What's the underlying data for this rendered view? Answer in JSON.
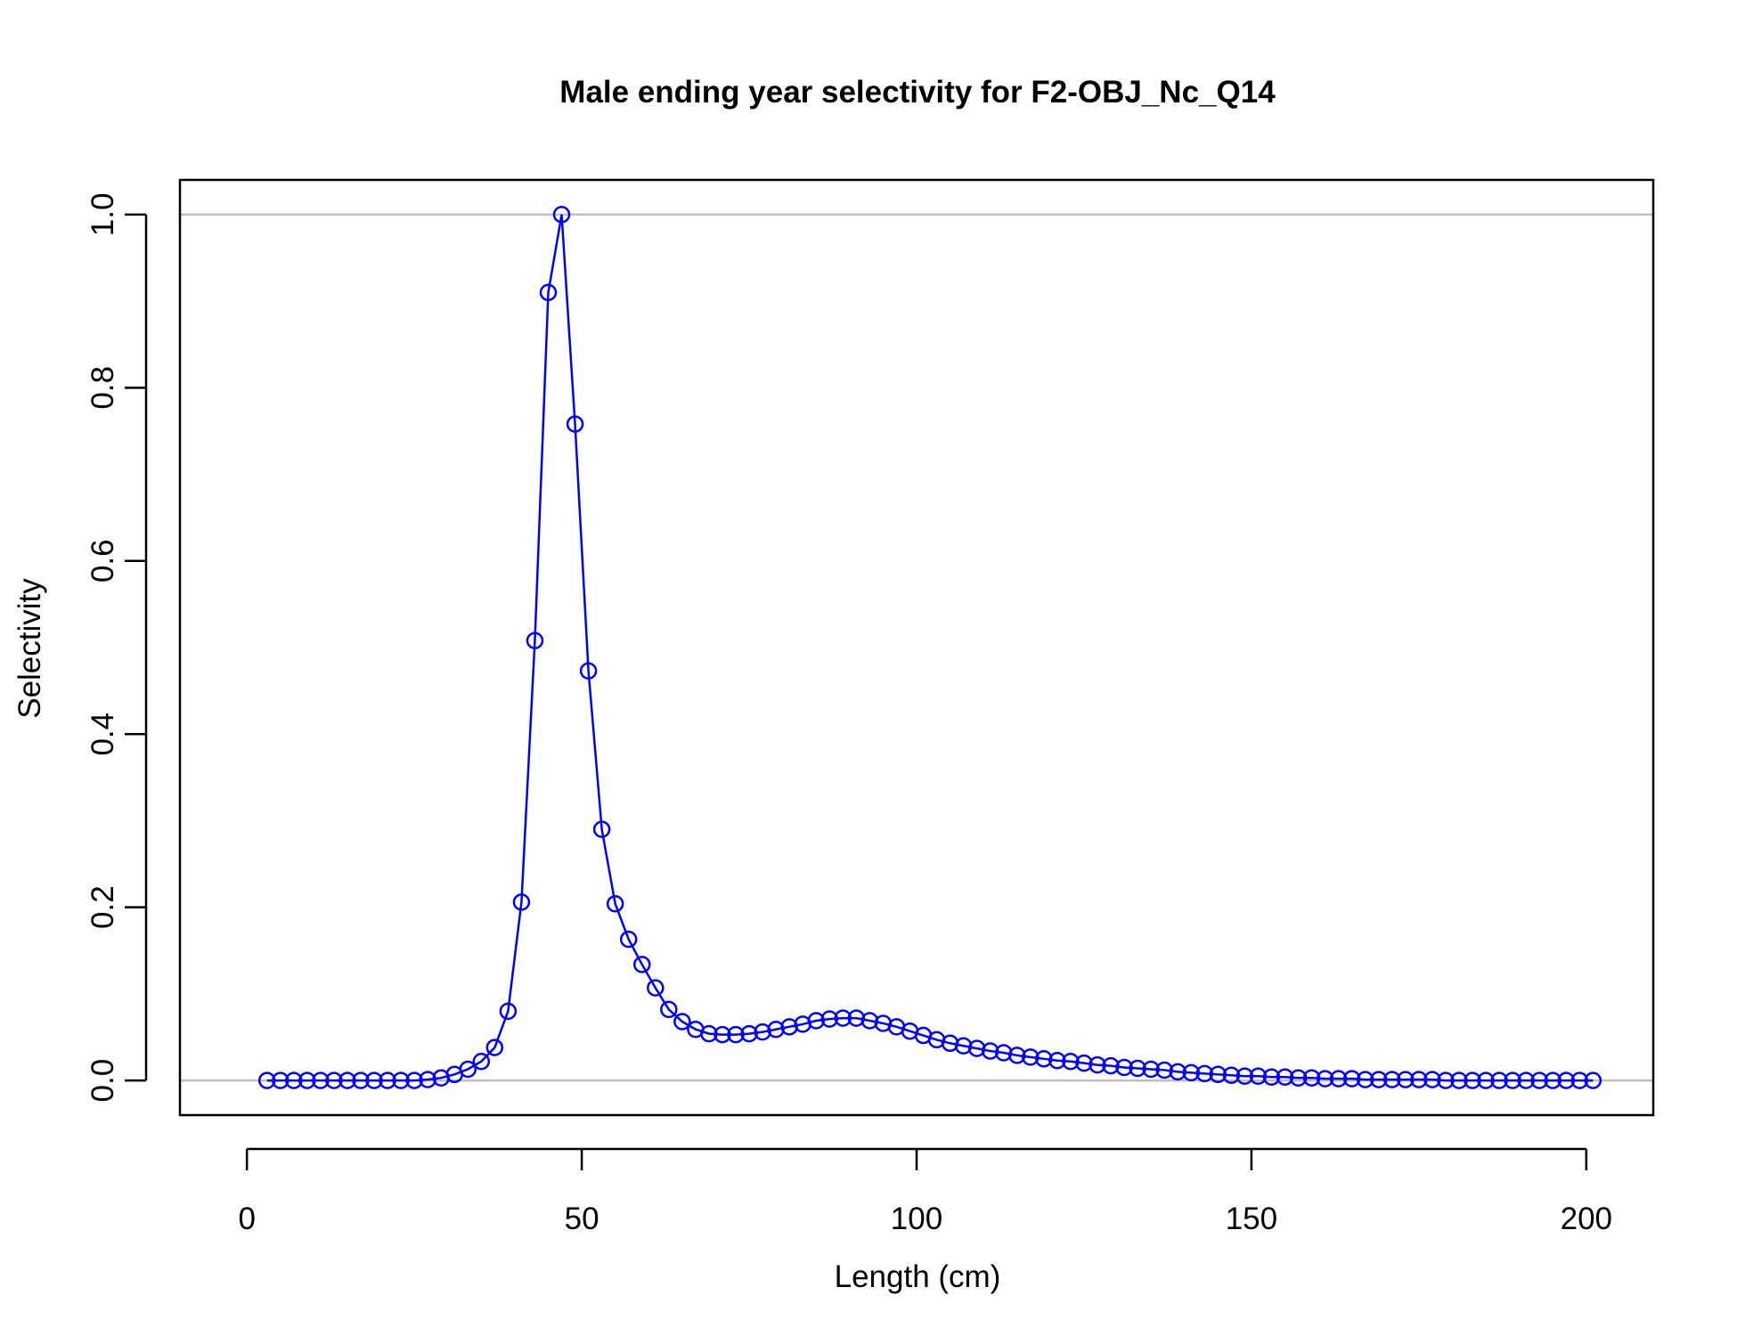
{
  "chart_data": {
    "type": "line",
    "title": "Male ending year selectivity for F2-OBJ_Nc_Q14",
    "xlabel": "Length (cm)",
    "ylabel": "Selectivity",
    "xlim": [
      -10,
      210
    ],
    "ylim": [
      -0.04,
      1.04
    ],
    "xticks": [
      0,
      50,
      100,
      150,
      200
    ],
    "xtick_labels": [
      "0",
      "50",
      "100",
      "150",
      "200"
    ],
    "yticks": [
      0.0,
      0.2,
      0.4,
      0.6,
      0.8,
      1.0
    ],
    "ytick_labels": [
      "0.0",
      "0.2",
      "0.4",
      "0.6",
      "0.8",
      "1.0"
    ],
    "reference_lines": [
      0,
      1
    ],
    "grid": false,
    "series_color": "#0000ff",
    "reference_line_color": "#bebebe",
    "marker": "open-circle",
    "series": [
      {
        "x": [
          3,
          5,
          7,
          9,
          11,
          13,
          15,
          17,
          19,
          21,
          23,
          25,
          27,
          29,
          31,
          33,
          35,
          37,
          39,
          41,
          43,
          45,
          47,
          49,
          51,
          53,
          55,
          57,
          59,
          61,
          63,
          65,
          67,
          69,
          71,
          73,
          75,
          77,
          79,
          81,
          83,
          85,
          87,
          89,
          91,
          93,
          95,
          97,
          99,
          101,
          103,
          105,
          107,
          109,
          111,
          113,
          115,
          117,
          119,
          121,
          123,
          125,
          127,
          129,
          131,
          133,
          135,
          137,
          139,
          141,
          143,
          145,
          147,
          149,
          151,
          153,
          155,
          157,
          159,
          161,
          163,
          165,
          167,
          169,
          171,
          173,
          175,
          177,
          179,
          181,
          183,
          185,
          187,
          189,
          191,
          193,
          195,
          197,
          199,
          201
        ],
        "y": [
          0.0,
          0.0,
          0.0,
          0.0,
          0.0,
          0.0,
          0.0,
          0.0,
          0.0,
          0.0,
          0.0,
          0.0,
          0.001,
          0.003,
          0.007,
          0.013,
          0.022,
          0.038,
          0.08,
          0.206,
          0.508,
          0.91,
          1.0,
          0.758,
          0.473,
          0.29,
          0.204,
          0.163,
          0.134,
          0.107,
          0.082,
          0.068,
          0.059,
          0.054,
          0.053,
          0.053,
          0.054,
          0.056,
          0.059,
          0.062,
          0.065,
          0.069,
          0.071,
          0.072,
          0.072,
          0.069,
          0.066,
          0.062,
          0.057,
          0.052,
          0.047,
          0.043,
          0.04,
          0.037,
          0.034,
          0.032,
          0.029,
          0.027,
          0.025,
          0.023,
          0.022,
          0.02,
          0.018,
          0.017,
          0.015,
          0.014,
          0.013,
          0.012,
          0.01,
          0.009,
          0.008,
          0.007,
          0.006,
          0.005,
          0.005,
          0.004,
          0.004,
          0.003,
          0.003,
          0.002,
          0.002,
          0.002,
          0.001,
          0.001,
          0.001,
          0.001,
          0.001,
          0.001,
          0.0,
          0.0,
          0.0,
          0.0,
          0.0,
          0.0,
          0.0,
          0.0,
          0.0,
          0.0,
          0.0,
          0.0
        ]
      }
    ]
  }
}
